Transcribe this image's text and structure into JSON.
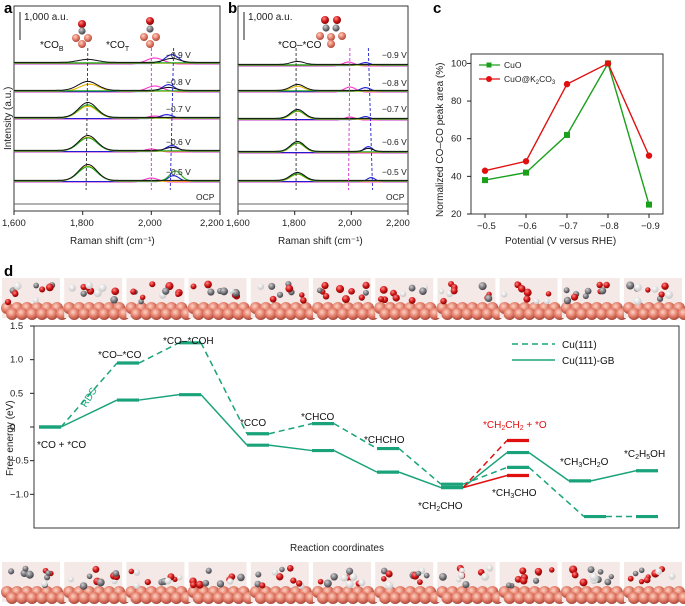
{
  "panels": {
    "a": {
      "label": "a",
      "scale_note": "1,000 a.u.",
      "xlabel": "Raman shift (cm⁻¹)",
      "ylabel": "Intensity (a.u.)",
      "xticks": [
        "1,600",
        "1,800",
        "2,000",
        "2,200"
      ],
      "potentials": [
        "−0.9 V",
        "−0.8 V",
        "−0.7 V",
        "−0.6 V",
        "−0.5 V",
        "OCP"
      ],
      "peak_labels": [
        "*CO",
        "*CO"
      ],
      "peak_subscripts": [
        "B",
        "T"
      ]
    },
    "b": {
      "label": "b",
      "scale_note": "1,000 a.u.",
      "xlabel": "Raman shift (cm⁻¹)",
      "xticks": [
        "1,600",
        "1,800",
        "2,000",
        "2,200"
      ],
      "potentials": [
        "−0.9 V",
        "−0.8 V",
        "−0.7 V",
        "−0.6 V",
        "−0.5 V",
        "OCP"
      ],
      "peak_label": "*CO–*CO"
    },
    "c": {
      "label": "c",
      "xlabel": "Potential (V versus RHE)",
      "ylabel": "Normalized CO–CO peak area (%)",
      "legend": [
        "CuO",
        "CuO@K",
        "2",
        "CO",
        "3"
      ],
      "series_colors": [
        "#1aa01a",
        "#e01010"
      ]
    },
    "d": {
      "label": "d",
      "xlabel": "Reaction coordinates",
      "ylabel": "Free energy (eV)",
      "legend": [
        "Cu(111)",
        "Cu(111)-GB"
      ],
      "rds": "RDS",
      "species": {
        "co_co": "*CO + *CO",
        "co_co_bond": "*CO–*CO",
        "co_coh": "*CO–*COH",
        "cco": "*CCO",
        "chco": "*CHCO",
        "chcho": "*CHCHO",
        "ch2cho": "*CH",
        "ch2cho_sub": "2",
        "ch2cho_end": "CHO",
        "ch3cho": "*CH",
        "ch3cho_sub": "3",
        "ch3cho_end": "CHO",
        "ch2ch2o": "*CH",
        "ch2ch2o_sub": "2",
        "ch2ch2o_mid": "CH",
        "ch2ch2o_sub2": "2",
        "ch2ch2o_end": " + *O",
        "ch3ch2o": "*CH",
        "ch3ch2o_sub": "3",
        "ch3ch2o_mid": "CH",
        "ch3ch2o_sub2": "2",
        "ch3ch2o_end": "O",
        "c2h5oh": "*C",
        "c2h5oh_sub": "2",
        "c2h5oh_mid": "H",
        "c2h5oh_sub2": "5",
        "c2h5oh_end": "OH"
      },
      "colors": {
        "main": "#1aa37a",
        "highlight": "#e01010"
      }
    }
  },
  "chart_data": [
    {
      "type": "line",
      "panel": "c",
      "title": "",
      "xlabel": "Potential (V versus RHE)",
      "ylabel": "Normalized CO–CO peak area (%)",
      "categories": [
        "−0.5",
        "−0.6",
        "−0.7",
        "−0.8",
        "−0.9"
      ],
      "yticks": [
        "20",
        "40",
        "60",
        "80",
        "100"
      ],
      "ylim": [
        20,
        105
      ],
      "series": [
        {
          "name": "CuO",
          "color": "#1aa01a",
          "marker": "square",
          "values": [
            38,
            42,
            62,
            100,
            25
          ]
        },
        {
          "name": "CuO@K2CO3",
          "color": "#e01010",
          "marker": "circle",
          "values": [
            43,
            48,
            89,
            100,
            51
          ]
        }
      ]
    },
    {
      "type": "line",
      "panel": "d",
      "title": "",
      "xlabel": "Reaction coordinates",
      "ylabel": "Free energy (eV)",
      "yticks": [
        "−1.0",
        "−0.5",
        "0",
        "0.5",
        "1.0",
        "1.5"
      ],
      "ylim": [
        -1.5,
        1.5
      ],
      "steps": [
        "*CO + *CO",
        "*CO–*CO",
        "*CO–*COH",
        "*CCO",
        "*CHCO",
        "*CHCHO",
        "*CH2CHO",
        "*CH3CHO / *CH2CH2 + *O",
        "*CH3CH2O",
        "*C2H5OH"
      ],
      "series": [
        {
          "name": "Cu(111)",
          "style": "dashed",
          "values": [
            0.0,
            0.95,
            1.25,
            -0.1,
            0.05,
            -0.32,
            -0.85,
            -0.6,
            null,
            -1.33
          ]
        },
        {
          "name": "Cu(111)-GB",
          "style": "solid",
          "values": [
            0.0,
            0.4,
            0.48,
            -0.27,
            -0.35,
            -0.67,
            -0.9,
            -0.38,
            -0.8,
            -0.65
          ]
        },
        {
          "name": "Cu(111)-GB highlight",
          "style": "red",
          "values": [
            null,
            null,
            null,
            null,
            null,
            null,
            null,
            -0.2,
            null,
            null
          ]
        },
        {
          "name": "Cu(111)-GB CH3CHO",
          "style": "red",
          "values": [
            null,
            null,
            null,
            null,
            null,
            null,
            null,
            -0.72,
            null,
            null
          ]
        }
      ]
    }
  ]
}
